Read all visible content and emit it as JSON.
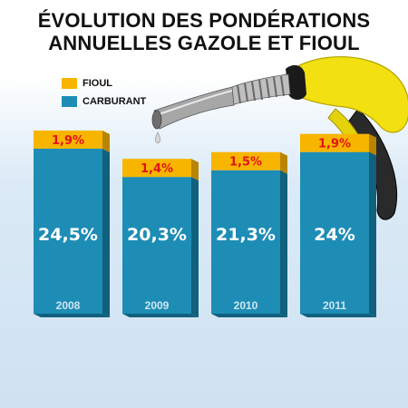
{
  "title": {
    "line1": "ÉVOLUTION DES PONDÉRATIONS",
    "line2": "ANNUELLES GAZOLE ET FIOUL"
  },
  "legend": [
    {
      "label": "FIOUL",
      "color": "#f7b500"
    },
    {
      "label": "CARBURANT",
      "color": "#1e8db5"
    }
  ],
  "colors": {
    "carburant": "#1e8db5",
    "carburant_side": "#11607d",
    "fioul": "#f7b500",
    "fioul_side": "#b98400",
    "fioul_label": "#e0141b",
    "nozzle": "#f2e010"
  },
  "illustration": "fuel-pump-nozzle",
  "chart_data": {
    "type": "bar",
    "stacked": true,
    "categories": [
      "2008",
      "2009",
      "2010",
      "2011"
    ],
    "series": [
      {
        "name": "CARBURANT",
        "values": [
          24.5,
          20.3,
          21.3,
          24.0
        ],
        "labels": [
          "24,5%",
          "20,3%",
          "21,3%",
          "24%"
        ]
      },
      {
        "name": "FIOUL",
        "values": [
          1.9,
          1.4,
          1.5,
          1.9
        ],
        "labels": [
          "1,9%",
          "1,4%",
          "1,5%",
          "1,9%"
        ]
      }
    ],
    "title": "ÉVOLUTION DES PONDÉRATIONS ANNUELLES GAZOLE ET FIOUL",
    "legend_position": "top-left",
    "grid": false
  }
}
